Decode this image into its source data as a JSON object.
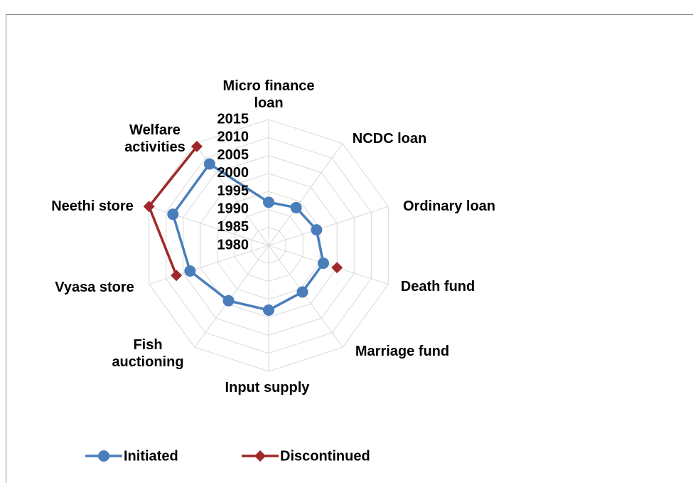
{
  "chart_data": {
    "type": "radar",
    "categories": [
      "Micro finance loan",
      "NCDC loan",
      "Ordinary loan",
      "Death fund",
      "Marriage fund",
      "Input supply",
      "Fish auctioning",
      "Vyasa store",
      "Neethi store",
      "Welfare activities"
    ],
    "series": [
      {
        "name": "Initiated",
        "color": "#4a7ebb",
        "marker": "circle",
        "values": [
          1992,
          1993,
          1994,
          1996,
          1996,
          1998,
          1999,
          2003,
          2008,
          2008
        ]
      },
      {
        "name": "Discontinued",
        "color": "#a0282a",
        "marker": "diamond",
        "values": [
          null,
          null,
          null,
          2000,
          null,
          null,
          null,
          2007,
          2015,
          2014
        ]
      }
    ],
    "ylim": [
      1980,
      2015
    ],
    "yticks": [
      1980,
      1985,
      1990,
      1995,
      2000,
      2005,
      2010,
      2015
    ],
    "grid": true
  }
}
